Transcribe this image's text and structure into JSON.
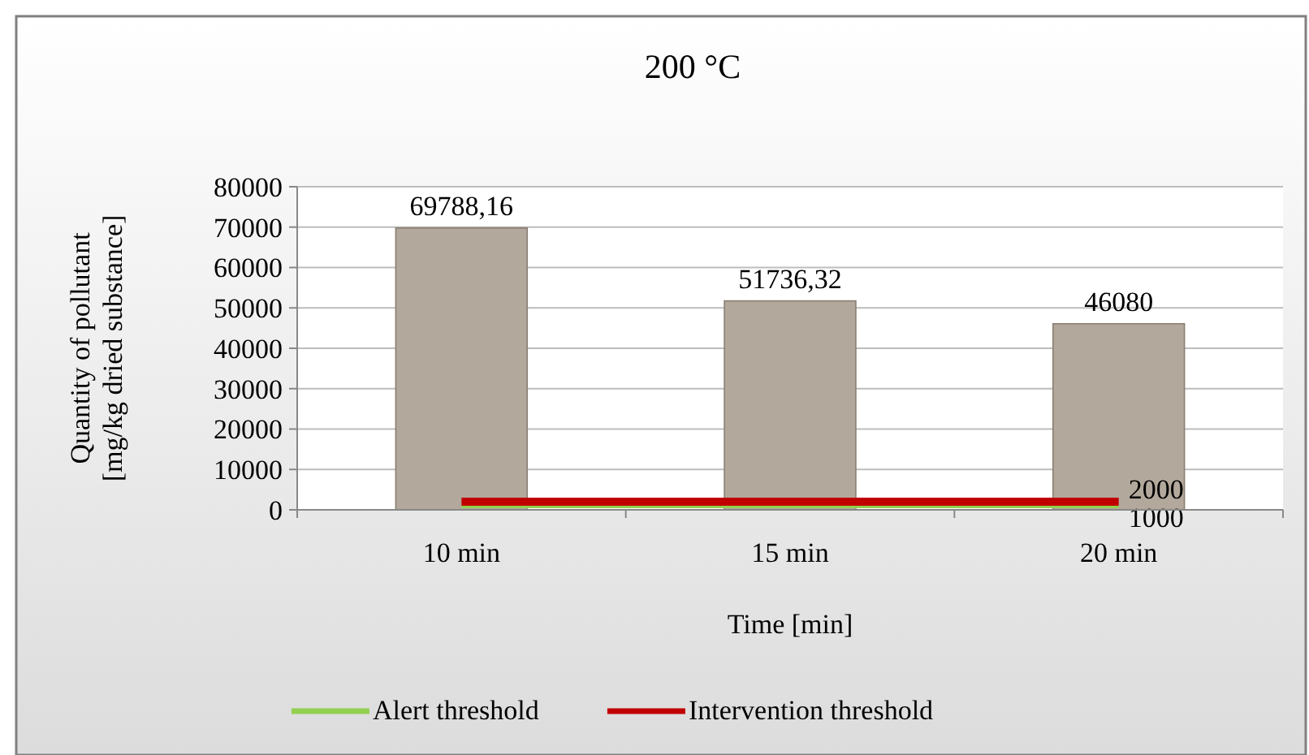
{
  "chart_data": {
    "type": "bar",
    "title": "200 °C",
    "xlabel": "Time [min]",
    "ylabel": "Quantity of pollutant [mg/kg dried substance]",
    "categories": [
      "10 min",
      "15 min",
      "20 min"
    ],
    "series": [
      {
        "type": "bar",
        "color": "#b3a89c",
        "values": [
          69788.16,
          51736.32,
          46080
        ],
        "value_labels": [
          "69788,16",
          "51736,32",
          "46080"
        ]
      },
      {
        "type": "line",
        "name": "Alert threshold",
        "color": "#92d050",
        "values": [
          1000,
          1000,
          1000
        ],
        "value_labels": [
          null,
          null,
          "1000"
        ]
      },
      {
        "type": "line",
        "name": "Intervention threshold",
        "color": "#c00000",
        "values": [
          2000,
          2000,
          2000
        ],
        "value_labels": [
          null,
          null,
          "2000"
        ]
      }
    ],
    "ylim": [
      0,
      80000
    ],
    "yticks": [
      0,
      10000,
      20000,
      30000,
      40000,
      50000,
      60000,
      70000,
      80000
    ],
    "grid": "y",
    "legend": "bottom"
  }
}
